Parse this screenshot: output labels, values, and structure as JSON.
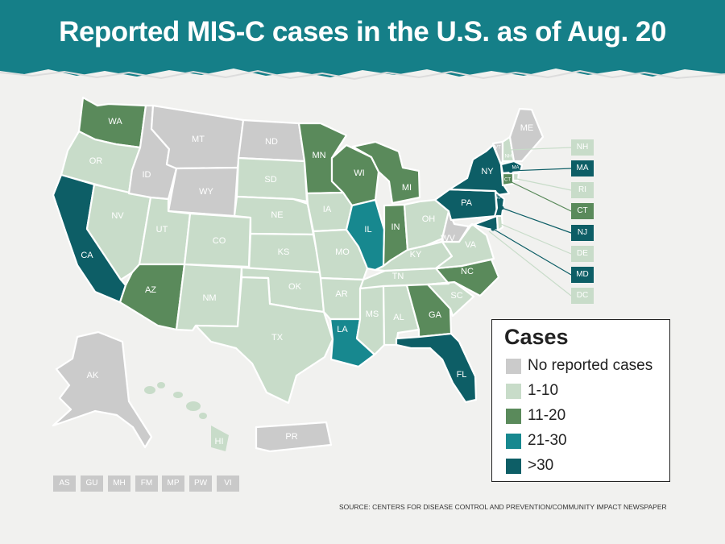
{
  "title": "Reported MIS-C cases in the U.S. as of Aug. 20",
  "source": "SOURCE: CENTERS FOR DISEASE CONTROL AND PREVENTION/COMMUNITY IMPACT NEWSPAPER",
  "legend": {
    "title": "Cases",
    "items": [
      {
        "label": "No reported cases",
        "color": "#cbcbcb"
      },
      {
        "label": "1-10",
        "color": "#c8dcc9"
      },
      {
        "label": "11-20",
        "color": "#5a8a5b"
      },
      {
        "label": "21-30",
        "color": "#17888f"
      },
      {
        "label": ">30",
        "color": "#0d5e66"
      }
    ]
  },
  "states": {
    "WA": "WA",
    "OR": "OR",
    "CA": "CA",
    "NV": "NV",
    "ID": "ID",
    "MT": "MT",
    "WY": "WY",
    "UT": "UT",
    "AZ": "AZ",
    "CO": "CO",
    "NM": "NM",
    "ND": "ND",
    "SD": "SD",
    "NE": "NE",
    "KS": "KS",
    "OK": "OK",
    "TX": "TX",
    "MN": "MN",
    "IA": "IA",
    "MO": "MO",
    "AR": "AR",
    "LA": "LA",
    "WI": "WI",
    "IL": "IL",
    "MI": "MI",
    "IN": "IN",
    "OH": "OH",
    "KY": "KY",
    "TN": "TN",
    "MS": "MS",
    "AL": "AL",
    "GA": "GA",
    "FL": "FL",
    "SC": "SC",
    "NC": "NC",
    "VA": "VA",
    "WV": "WV",
    "PA": "PA",
    "NY": "NY",
    "ME": "ME",
    "VT": "VT",
    "NH": "NH",
    "MA": "MA",
    "CT": "CT",
    "NJ": "NJ",
    "MD": "MD",
    "AK": "AK",
    "HI": "HI",
    "PR": "PR"
  },
  "callouts": [
    "NH",
    "MA",
    "RI",
    "CT",
    "NJ",
    "DE",
    "MD",
    "DC"
  ],
  "territories": [
    "AS",
    "GU",
    "MH",
    "FM",
    "MP",
    "PW",
    "VI"
  ],
  "map_data": {
    "none": [
      "ID",
      "MT",
      "WY",
      "ND",
      "WV",
      "ME",
      "VT",
      "AK",
      "PR",
      "AS",
      "GU",
      "MH",
      "FM",
      "MP",
      "PW",
      "VI"
    ],
    "range_1_10": [
      "OR",
      "NV",
      "UT",
      "CO",
      "NM",
      "SD",
      "NE",
      "KS",
      "OK",
      "TX",
      "IA",
      "MO",
      "AR",
      "MS",
      "AL",
      "TN",
      "KY",
      "OH",
      "SC",
      "VA",
      "NH",
      "RI",
      "DE",
      "DC",
      "HI"
    ],
    "range_11_20": [
      "WA",
      "AZ",
      "MN",
      "WI",
      "MI",
      "IN",
      "GA",
      "NC",
      "CT"
    ],
    "range_21_30": [
      "IL",
      "LA"
    ],
    "range_over_30": [
      "CA",
      "NY",
      "PA",
      "FL",
      "MA",
      "NJ",
      "MD"
    ]
  }
}
